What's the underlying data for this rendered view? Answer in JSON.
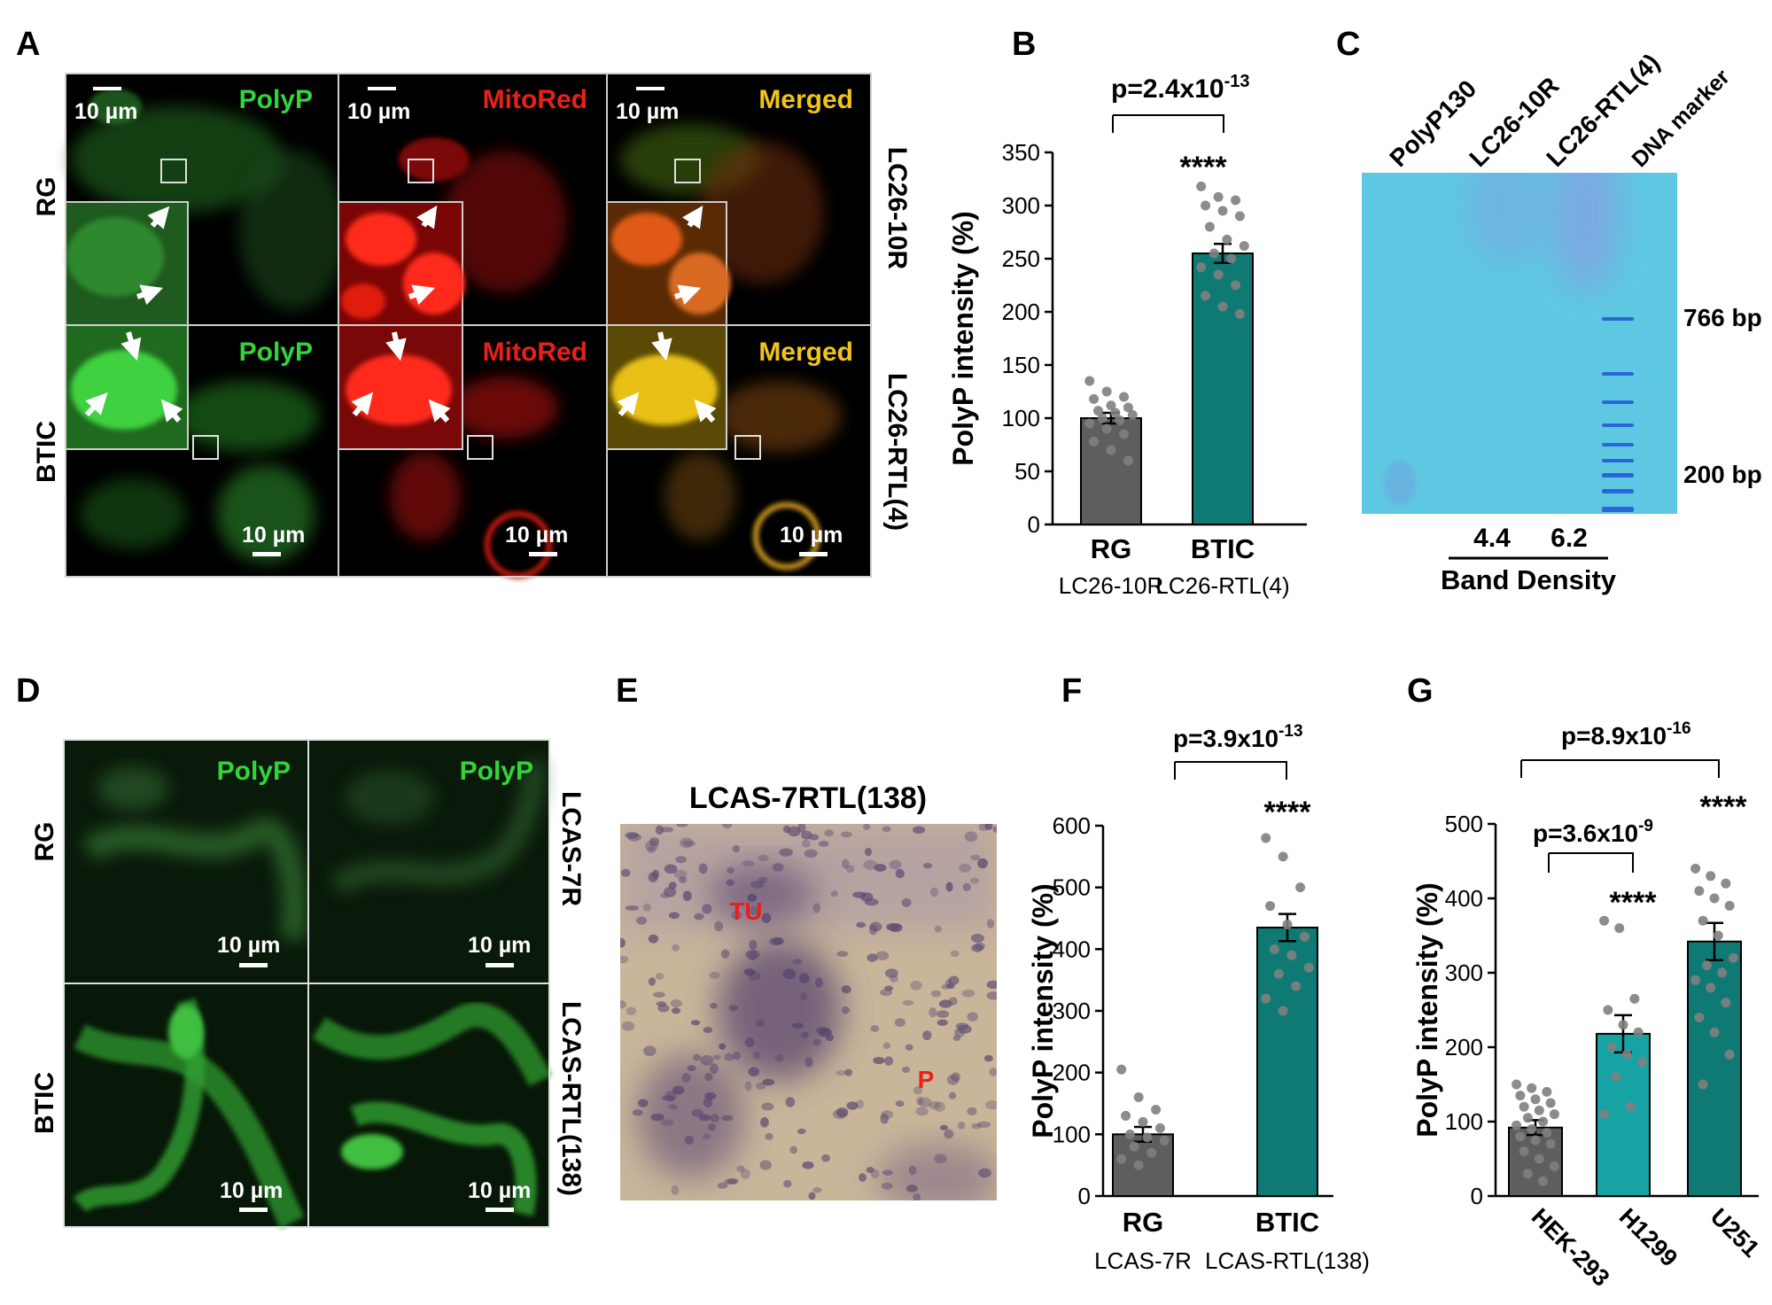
{
  "panels": {
    "A": {
      "letter": "A",
      "row_labels": [
        "RG",
        "BTIC"
      ],
      "side_labels": [
        "LC26-10R",
        "LC26-RTL(4)"
      ],
      "channels": [
        "PolyP",
        "MitoRed",
        "Merged"
      ],
      "scale_bar": "10 µm",
      "colors": {
        "polyp": "#33d43a",
        "mitored": "#e8201a",
        "merged": "#f0c419"
      }
    },
    "B": {
      "letter": "B",
      "p_text": "p=2.4x10",
      "p_exp": "-13",
      "stars": "****",
      "ylabel": "PolyP intensity (%)",
      "cat_main": [
        "RG",
        "BTIC"
      ],
      "cat_sub": [
        "LC26-10R",
        "LC26-RTL(4)"
      ]
    },
    "C": {
      "letter": "C",
      "lanes": [
        "PolyP130",
        "LC26-10R",
        "LC26-RTL(4)",
        "DNA marker"
      ],
      "markers": [
        "766 bp",
        "200 bp"
      ],
      "densities": [
        "4.4",
        "6.2"
      ],
      "density_label": "Band Density",
      "gel_color": "#5cc8e0"
    },
    "D": {
      "letter": "D",
      "row_labels": [
        "RG",
        "BTIC"
      ],
      "side_labels": [
        "LCAS-7R",
        "LCAS-RTL(138)"
      ],
      "channel": "PolyP",
      "scale_bar": "10 µm"
    },
    "E": {
      "letter": "E",
      "title": "LCAS-7RTL(138)",
      "tu": "TU",
      "p": "P"
    },
    "F": {
      "letter": "F",
      "p_text": "p=3.9x10",
      "p_exp": "-13",
      "stars": "****",
      "ylabel": "PolyP intensity (%)",
      "cat_main": [
        "RG",
        "BTIC"
      ],
      "cat_sub": [
        "LCAS-7R",
        "LCAS-RTL(138)"
      ]
    },
    "G": {
      "letter": "G",
      "p1_text": "p=8.9x10",
      "p1_exp": "-16",
      "p2_text": "p=3.6x10",
      "p2_exp": "-9",
      "stars": "****",
      "ylabel": "PolyP intensity (%)",
      "categories": [
        "HEK-293",
        "H1299",
        "U251"
      ]
    }
  },
  "chart_data": [
    {
      "type": "bar",
      "panel": "B",
      "categories": [
        "RG",
        "BTIC"
      ],
      "values": [
        100,
        255
      ],
      "errors": [
        5,
        9
      ],
      "ylim": [
        0,
        350
      ],
      "yticks": [
        0,
        50,
        100,
        150,
        200,
        250,
        300,
        350
      ],
      "ylabel": "PolyP intensity (%)",
      "bar_colors": [
        "#5e5e5e",
        "#0f7a74"
      ],
      "points": [
        [
          135,
          125,
          120,
          118,
          112,
          110,
          107,
          105,
          103,
          100,
          98,
          95,
          90,
          85,
          78,
          70,
          60
        ],
        [
          318,
          308,
          305,
          300,
          295,
          290,
          280,
          268,
          262,
          255,
          250,
          242,
          235,
          225,
          215,
          205,
          198
        ]
      ]
    },
    {
      "type": "bar",
      "panel": "F",
      "categories": [
        "RG",
        "BTIC"
      ],
      "values": [
        100,
        435
      ],
      "errors": [
        12,
        22
      ],
      "ylim": [
        0,
        600
      ],
      "yticks": [
        0,
        100,
        200,
        300,
        400,
        500,
        600
      ],
      "ylabel": "PolyP intensity (%)",
      "bar_colors": [
        "#5e5e5e",
        "#0f7a74"
      ],
      "points": [
        [
          205,
          160,
          140,
          130,
          120,
          110,
          100,
          95,
          90,
          80,
          70,
          60,
          50
        ],
        [
          580,
          550,
          500,
          470,
          440,
          420,
          400,
          390,
          370,
          360,
          340,
          320,
          300
        ]
      ]
    },
    {
      "type": "bar",
      "panel": "G",
      "categories": [
        "HEK-293",
        "H1299",
        "U251"
      ],
      "values": [
        92,
        218,
        342
      ],
      "errors": [
        10,
        25,
        25
      ],
      "ylim": [
        0,
        500
      ],
      "yticks": [
        0,
        100,
        200,
        300,
        400,
        500
      ],
      "ylabel": "PolyP intensity (%)",
      "bar_colors": [
        "#5e5e5e",
        "#17a3a3",
        "#0f7a74"
      ],
      "points": [
        [
          150,
          145,
          140,
          135,
          130,
          125,
          120,
          115,
          110,
          105,
          100,
          95,
          90,
          85,
          80,
          75,
          70,
          60,
          50,
          40,
          30,
          20
        ],
        [
          370,
          360,
          265,
          250,
          230,
          220,
          200,
          190,
          180,
          160,
          120,
          110
        ],
        [
          440,
          430,
          420,
          410,
          400,
          390,
          370,
          350,
          320,
          310,
          300,
          290,
          280,
          260,
          240,
          220,
          190,
          150
        ]
      ]
    }
  ]
}
